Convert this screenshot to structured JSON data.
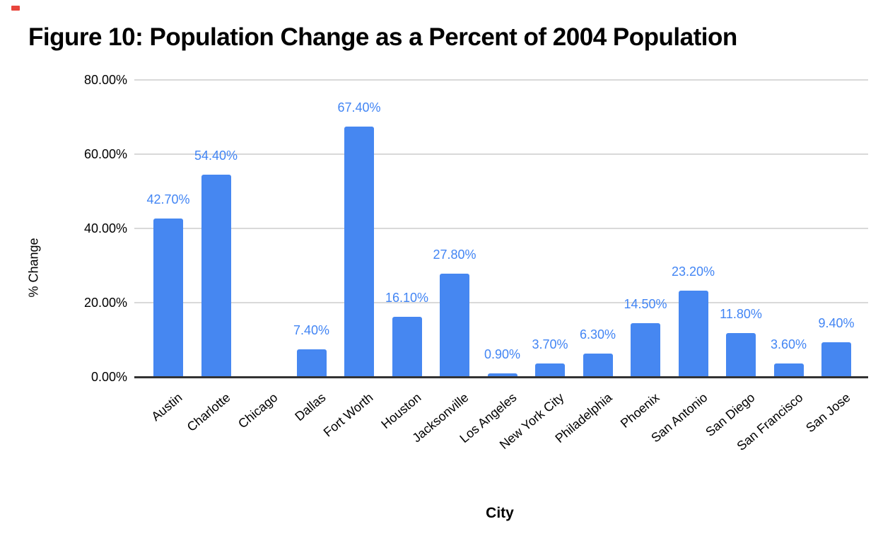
{
  "title": "Figure 10: Population Change as a Percent of 2004 Population",
  "chart_data": {
    "type": "bar",
    "title": "Figure 10: Population Change as a Percent of 2004 Population",
    "xlabel": "City",
    "ylabel": "% Change",
    "categories": [
      "Austin",
      "Charlotte",
      "Chicago",
      "Dallas",
      "Fort Worth",
      "Houston",
      "Jacksonville",
      "Los Angeles",
      "New York City",
      "Philadelphia",
      "Phoenix",
      "San Antonio",
      "San Diego",
      "San Francisco",
      "San Jose"
    ],
    "values": [
      42.7,
      54.4,
      0,
      7.4,
      67.4,
      16.1,
      27.8,
      0.9,
      3.7,
      6.3,
      14.5,
      23.2,
      11.8,
      3.6,
      9.4
    ],
    "data_labels": [
      "42.70%",
      "54.40%",
      "",
      "7.40%",
      "67.40%",
      "16.10%",
      "27.80%",
      "0.90%",
      "3.70%",
      "6.30%",
      "14.50%",
      "23.20%",
      "11.80%",
      "3.60%",
      "9.40%"
    ],
    "ylim": [
      0,
      80
    ],
    "yticks": [
      {
        "value": 0,
        "label": "0.00%"
      },
      {
        "value": 20,
        "label": "20.00%"
      },
      {
        "value": 40,
        "label": "40.00%"
      },
      {
        "value": 60,
        "label": "60.00%"
      },
      {
        "value": 80,
        "label": "80.00%"
      }
    ],
    "grid": true,
    "legend": "none",
    "colors": {
      "bar": "#4687f1",
      "data_label": "#4285f4",
      "gridline": "#d9d9d9",
      "axis": "#333333",
      "text": "#000000"
    }
  },
  "marker": {
    "color": "#e8453c"
  }
}
